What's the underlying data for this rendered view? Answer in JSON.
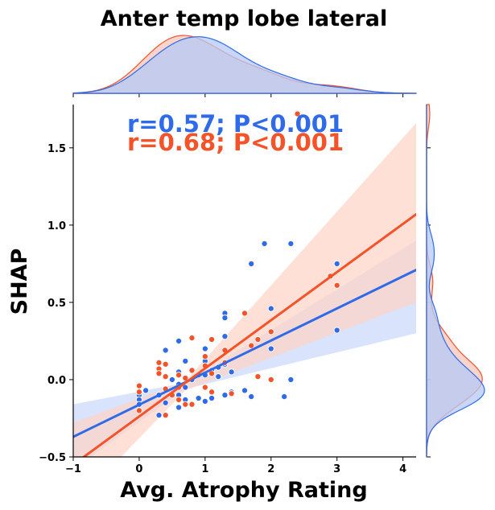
{
  "chart_data": {
    "type": "scatter",
    "title": "Anter temp lobe lateral",
    "xlabel": "Avg. Atrophy Rating",
    "ylabel": "SHAP",
    "xlim": [
      -1,
      4.2
    ],
    "ylim": [
      -0.5,
      1.78
    ],
    "x_ticks": [
      "−1",
      "0",
      "1",
      "2",
      "3",
      "4"
    ],
    "y_ticks": [
      "−0.5",
      "0.0",
      "0.5",
      "1.0",
      "1.5"
    ],
    "grid": false,
    "marginal_plots": "kde",
    "series": [
      {
        "color": "#2f6be8",
        "stat_label": "r=0.57; P<0.001",
        "regression": {
          "x1": -1,
          "y1": -0.37,
          "x2": 4.2,
          "y2": 0.71
        },
        "ci_band": {
          "x": [
            -1,
            0.7,
            4.2
          ],
          "upper": [
            -0.16,
            -0.02,
            0.9
          ],
          "lower": [
            -0.58,
            -0.06,
            0.3
          ]
        },
        "points": [
          [
            0.0,
            -0.1
          ],
          [
            0.0,
            -0.13
          ],
          [
            0.0,
            -0.16
          ],
          [
            0.1,
            -0.07
          ],
          [
            0.3,
            -0.23
          ],
          [
            0.3,
            -0.1
          ],
          [
            0.4,
            0.19
          ],
          [
            0.4,
            -0.07
          ],
          [
            0.4,
            -0.15
          ],
          [
            0.5,
            0.0
          ],
          [
            0.6,
            0.25
          ],
          [
            0.6,
            0.05
          ],
          [
            0.6,
            -0.03
          ],
          [
            0.6,
            -0.1
          ],
          [
            0.6,
            -0.18
          ],
          [
            0.7,
            0.12
          ],
          [
            0.7,
            -0.05
          ],
          [
            0.7,
            -0.13
          ],
          [
            0.8,
            0.0
          ],
          [
            0.9,
            0.03
          ],
          [
            0.9,
            -0.12
          ],
          [
            1.0,
            0.2
          ],
          [
            1.0,
            0.12
          ],
          [
            1.0,
            0.03
          ],
          [
            1.0,
            -0.14
          ],
          [
            1.1,
            0.06
          ],
          [
            1.1,
            -0.12
          ],
          [
            1.2,
            0.08
          ],
          [
            1.2,
            0.02
          ],
          [
            1.3,
            0.43
          ],
          [
            1.3,
            0.4
          ],
          [
            1.3,
            0.28
          ],
          [
            1.3,
            0.1
          ],
          [
            1.3,
            -0.1
          ],
          [
            1.4,
            0.05
          ],
          [
            1.4,
            -0.08
          ],
          [
            1.6,
            -0.07
          ],
          [
            1.7,
            0.75
          ],
          [
            1.7,
            -0.11
          ],
          [
            1.9,
            0.88
          ],
          [
            2.0,
            0.46
          ],
          [
            2.0,
            0.2
          ],
          [
            2.2,
            -0.11
          ],
          [
            2.3,
            0.88
          ],
          [
            2.3,
            0.0
          ],
          [
            3.0,
            0.75
          ],
          [
            3.0,
            0.32
          ]
        ]
      },
      {
        "color": "#f4532a",
        "stat_label": "r=0.68; P<0.001",
        "regression": {
          "x1": -1,
          "y1": -0.55,
          "x2": 4.2,
          "y2": 1.07
        },
        "ci_band": {
          "x": [
            -1,
            0.7,
            4.2
          ],
          "upper": [
            -0.28,
            -0.01,
            1.66
          ],
          "lower": [
            -0.82,
            -0.07,
            0.5
          ]
        },
        "points": [
          [
            0.0,
            -0.04
          ],
          [
            0.0,
            -0.08
          ],
          [
            0.0,
            -0.2
          ],
          [
            0.3,
            0.11
          ],
          [
            0.3,
            0.07
          ],
          [
            0.3,
            0.04
          ],
          [
            0.4,
            0.1
          ],
          [
            0.4,
            0.02
          ],
          [
            0.4,
            -0.06
          ],
          [
            0.4,
            -0.23
          ],
          [
            0.5,
            -0.1
          ],
          [
            0.6,
            0.03
          ],
          [
            0.6,
            -0.05
          ],
          [
            0.6,
            -0.13
          ],
          [
            0.7,
            0.01
          ],
          [
            0.7,
            -0.16
          ],
          [
            0.8,
            0.06
          ],
          [
            0.8,
            0.27
          ],
          [
            0.8,
            -0.16
          ],
          [
            1.0,
            0.09
          ],
          [
            1.0,
            0.15
          ],
          [
            1.0,
            -0.05
          ],
          [
            1.1,
            0.26
          ],
          [
            1.1,
            0.04
          ],
          [
            1.1,
            -0.08
          ],
          [
            1.3,
            0.19
          ],
          [
            1.3,
            0.11
          ],
          [
            1.4,
            -0.09
          ],
          [
            1.6,
            0.43
          ],
          [
            1.7,
            0.22
          ],
          [
            1.8,
            0.26
          ],
          [
            1.8,
            0.02
          ],
          [
            2.0,
            0.31
          ],
          [
            2.0,
            0.0
          ],
          [
            2.4,
            1.72
          ],
          [
            2.9,
            0.67
          ],
          [
            3.0,
            0.61
          ]
        ]
      }
    ]
  }
}
